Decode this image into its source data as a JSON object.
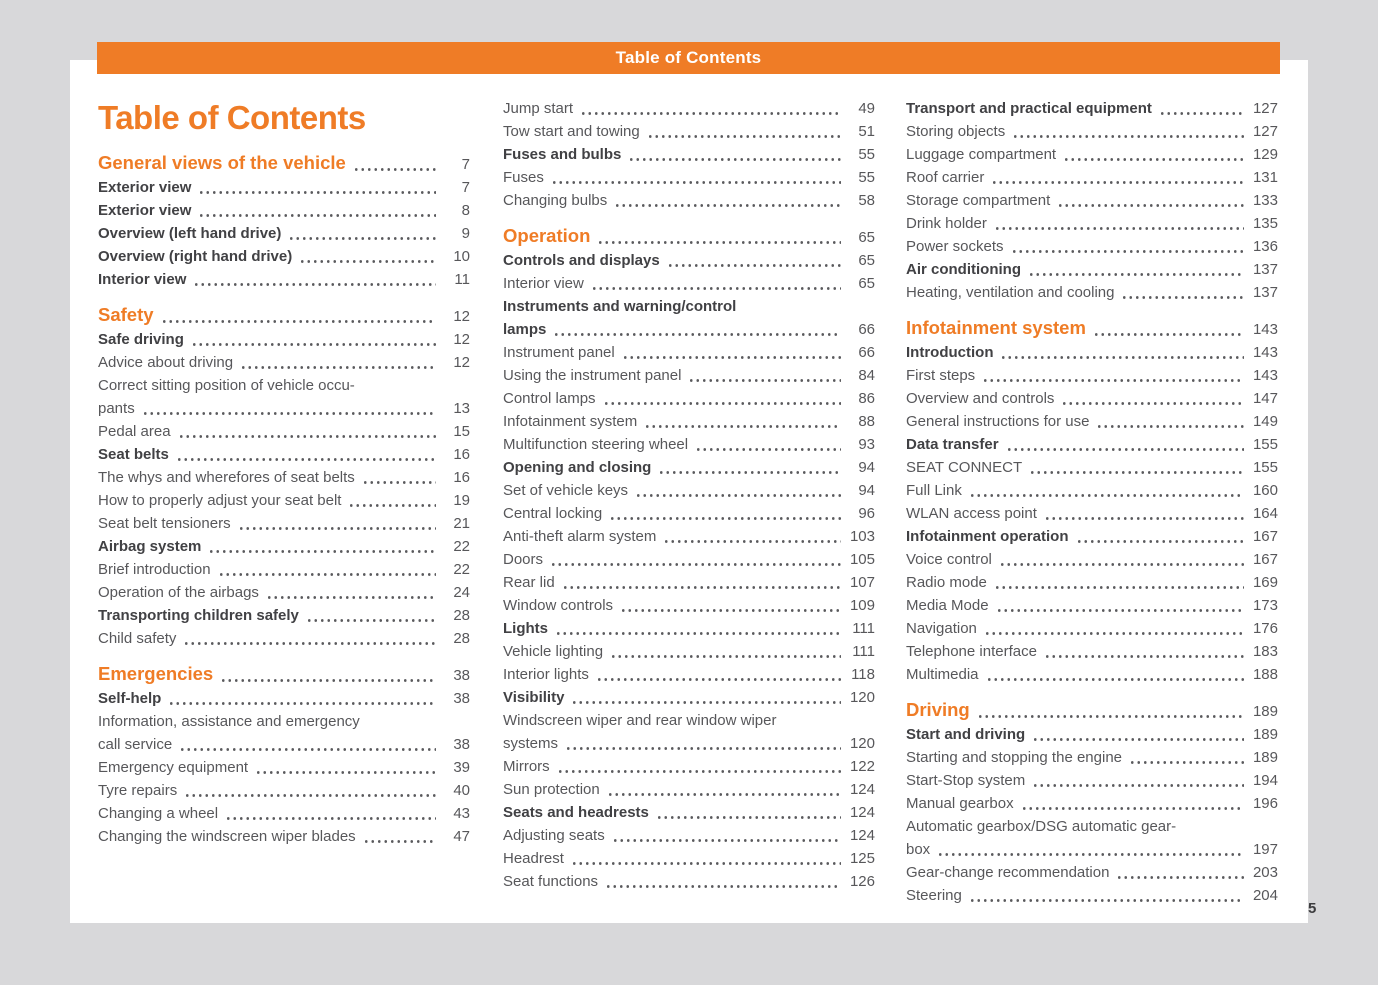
{
  "header": {
    "title": "Table of Contents"
  },
  "main_title": "Table of Contents",
  "footer": {
    "page_number": "5"
  },
  "colors": {
    "accent_orange": "#EF7C26",
    "text_regular": "#57575A",
    "text_bold": "#414144",
    "page_background": "#D8D8DA",
    "sheet_background": "#FFFFFF",
    "header_text": "#FFFFFF"
  },
  "columns": [
    {
      "name": "left",
      "sections": [
        {
          "heading": {
            "label": "General views of the vehicle",
            "page": "7"
          },
          "items": [
            {
              "label": "Exterior view",
              "page": "7",
              "bold": true
            },
            {
              "label": "Exterior view",
              "page": "8",
              "bold": true
            },
            {
              "label": "Overview (left hand drive)",
              "page": "9",
              "bold": true
            },
            {
              "label": "Overview (right hand drive)",
              "page": "10",
              "bold": true
            },
            {
              "label": "Interior view",
              "page": "11",
              "bold": true
            }
          ]
        },
        {
          "heading": {
            "label": "Safety",
            "page": "12"
          },
          "items": [
            {
              "label": "Safe driving",
              "page": "12",
              "bold": true
            },
            {
              "label": "Advice about driving",
              "page": "12"
            },
            {
              "line1": "Correct sitting position of vehicle occu-",
              "line2": "pants",
              "page": "13"
            },
            {
              "label": "Pedal area",
              "page": "15"
            },
            {
              "label": "Seat belts",
              "page": "16",
              "bold": true
            },
            {
              "label": "The whys and wherefores of seat belts",
              "page": "16"
            },
            {
              "label": "How to properly adjust your seat belt",
              "page": "19"
            },
            {
              "label": "Seat belt tensioners",
              "page": "21"
            },
            {
              "label": "Airbag system",
              "page": "22",
              "bold": true
            },
            {
              "label": "Brief introduction",
              "page": "22"
            },
            {
              "label": "Operation of the airbags",
              "page": "24"
            },
            {
              "label": "Transporting children safely",
              "page": "28",
              "bold": true
            },
            {
              "label": "Child safety",
              "page": "28"
            }
          ]
        },
        {
          "heading": {
            "label": "Emergencies",
            "page": "38"
          },
          "items": [
            {
              "label": "Self-help",
              "page": "38",
              "bold": true
            },
            {
              "line1": "Information, assistance and emergency",
              "line2": "call service",
              "page": "38"
            },
            {
              "label": "Emergency equipment",
              "page": "39"
            },
            {
              "label": "Tyre repairs",
              "page": "40"
            },
            {
              "label": "Changing a wheel",
              "page": "43"
            },
            {
              "label": "Changing the windscreen wiper blades",
              "page": "47"
            }
          ]
        }
      ]
    },
    {
      "name": "middle",
      "sections": [
        {
          "heading": null,
          "items": [
            {
              "label": "Jump start",
              "page": "49"
            },
            {
              "label": "Tow start and towing",
              "page": "51"
            },
            {
              "label": "Fuses and bulbs",
              "page": "55",
              "bold": true
            },
            {
              "label": "Fuses",
              "page": "55"
            },
            {
              "label": "Changing bulbs",
              "page": "58"
            }
          ]
        },
        {
          "heading": {
            "label": "Operation",
            "page": "65"
          },
          "items": [
            {
              "label": "Controls and displays",
              "page": "65",
              "bold": true
            },
            {
              "label": "Interior view",
              "page": "65"
            },
            {
              "line1": "Instruments and warning/control",
              "line2": "lamps",
              "page": "66",
              "bold": true
            },
            {
              "label": "Instrument panel",
              "page": "66"
            },
            {
              "label": "Using the instrument panel",
              "page": "84"
            },
            {
              "label": "Control lamps",
              "page": "86"
            },
            {
              "label": "Infotainment system",
              "page": "88"
            },
            {
              "label": "Multifunction steering wheel",
              "page": "93"
            },
            {
              "label": "Opening and closing",
              "page": "94",
              "bold": true
            },
            {
              "label": "Set of vehicle keys",
              "page": "94"
            },
            {
              "label": "Central locking",
              "page": "96"
            },
            {
              "label": "Anti-theft alarm system",
              "page": "103"
            },
            {
              "label": "Doors",
              "page": "105"
            },
            {
              "label": "Rear lid",
              "page": "107"
            },
            {
              "label": "Window controls",
              "page": "109"
            },
            {
              "label": "Lights",
              "page": "111",
              "bold": true
            },
            {
              "label": "Vehicle lighting",
              "page": "111"
            },
            {
              "label": "Interior lights",
              "page": "118"
            },
            {
              "label": "Visibility",
              "page": "120",
              "bold": true
            },
            {
              "line1": "Windscreen wiper and rear window wiper",
              "line2": "systems",
              "page": "120"
            },
            {
              "label": "Mirrors",
              "page": "122"
            },
            {
              "label": "Sun protection",
              "page": "124"
            },
            {
              "label": "Seats and headrests",
              "page": "124",
              "bold": true
            },
            {
              "label": "Adjusting seats",
              "page": "124"
            },
            {
              "label": "Headrest",
              "page": "125"
            },
            {
              "label": "Seat functions",
              "page": "126"
            }
          ]
        }
      ]
    },
    {
      "name": "right",
      "sections": [
        {
          "heading": null,
          "items": [
            {
              "label": "Transport and practical equipment",
              "page": "127",
              "bold": true
            },
            {
              "label": "Storing objects",
              "page": "127"
            },
            {
              "label": "Luggage compartment",
              "page": "129"
            },
            {
              "label": "Roof carrier",
              "page": "131"
            },
            {
              "label": "Storage compartment",
              "page": "133"
            },
            {
              "label": "Drink holder",
              "page": "135"
            },
            {
              "label": "Power sockets",
              "page": "136"
            },
            {
              "label": "Air conditioning",
              "page": "137",
              "bold": true
            },
            {
              "label": "Heating, ventilation and cooling",
              "page": "137"
            }
          ]
        },
        {
          "heading": {
            "label": "Infotainment system",
            "page": "143"
          },
          "items": [
            {
              "label": "Introduction",
              "page": "143",
              "bold": true
            },
            {
              "label": "First steps",
              "page": "143"
            },
            {
              "label": "Overview and controls",
              "page": "147"
            },
            {
              "label": "General instructions for use",
              "page": "149"
            },
            {
              "label": "Data transfer",
              "page": "155",
              "bold": true
            },
            {
              "label": "SEAT CONNECT",
              "page": "155"
            },
            {
              "label": "Full Link",
              "page": "160"
            },
            {
              "label": "WLAN access point",
              "page": "164"
            },
            {
              "label": "Infotainment operation",
              "page": "167",
              "bold": true
            },
            {
              "label": "Voice control",
              "page": "167"
            },
            {
              "label": "Radio mode",
              "page": "169"
            },
            {
              "label": "Media Mode",
              "page": "173"
            },
            {
              "label": "Navigation",
              "page": "176"
            },
            {
              "label": "Telephone interface",
              "page": "183"
            },
            {
              "label": "Multimedia",
              "page": "188"
            }
          ]
        },
        {
          "heading": {
            "label": "Driving",
            "page": "189"
          },
          "items": [
            {
              "label": "Start and driving",
              "page": "189",
              "bold": true
            },
            {
              "label": "Starting and stopping the engine",
              "page": "189"
            },
            {
              "label": "Start-Stop system",
              "page": "194"
            },
            {
              "label": "Manual gearbox",
              "page": "196"
            },
            {
              "line1": "Automatic gearbox/DSG automatic gear-",
              "line2": "box",
              "page": "197"
            },
            {
              "label": "Gear-change recommendation",
              "page": "203"
            },
            {
              "label": "Steering",
              "page": "204"
            }
          ]
        }
      ]
    }
  ]
}
